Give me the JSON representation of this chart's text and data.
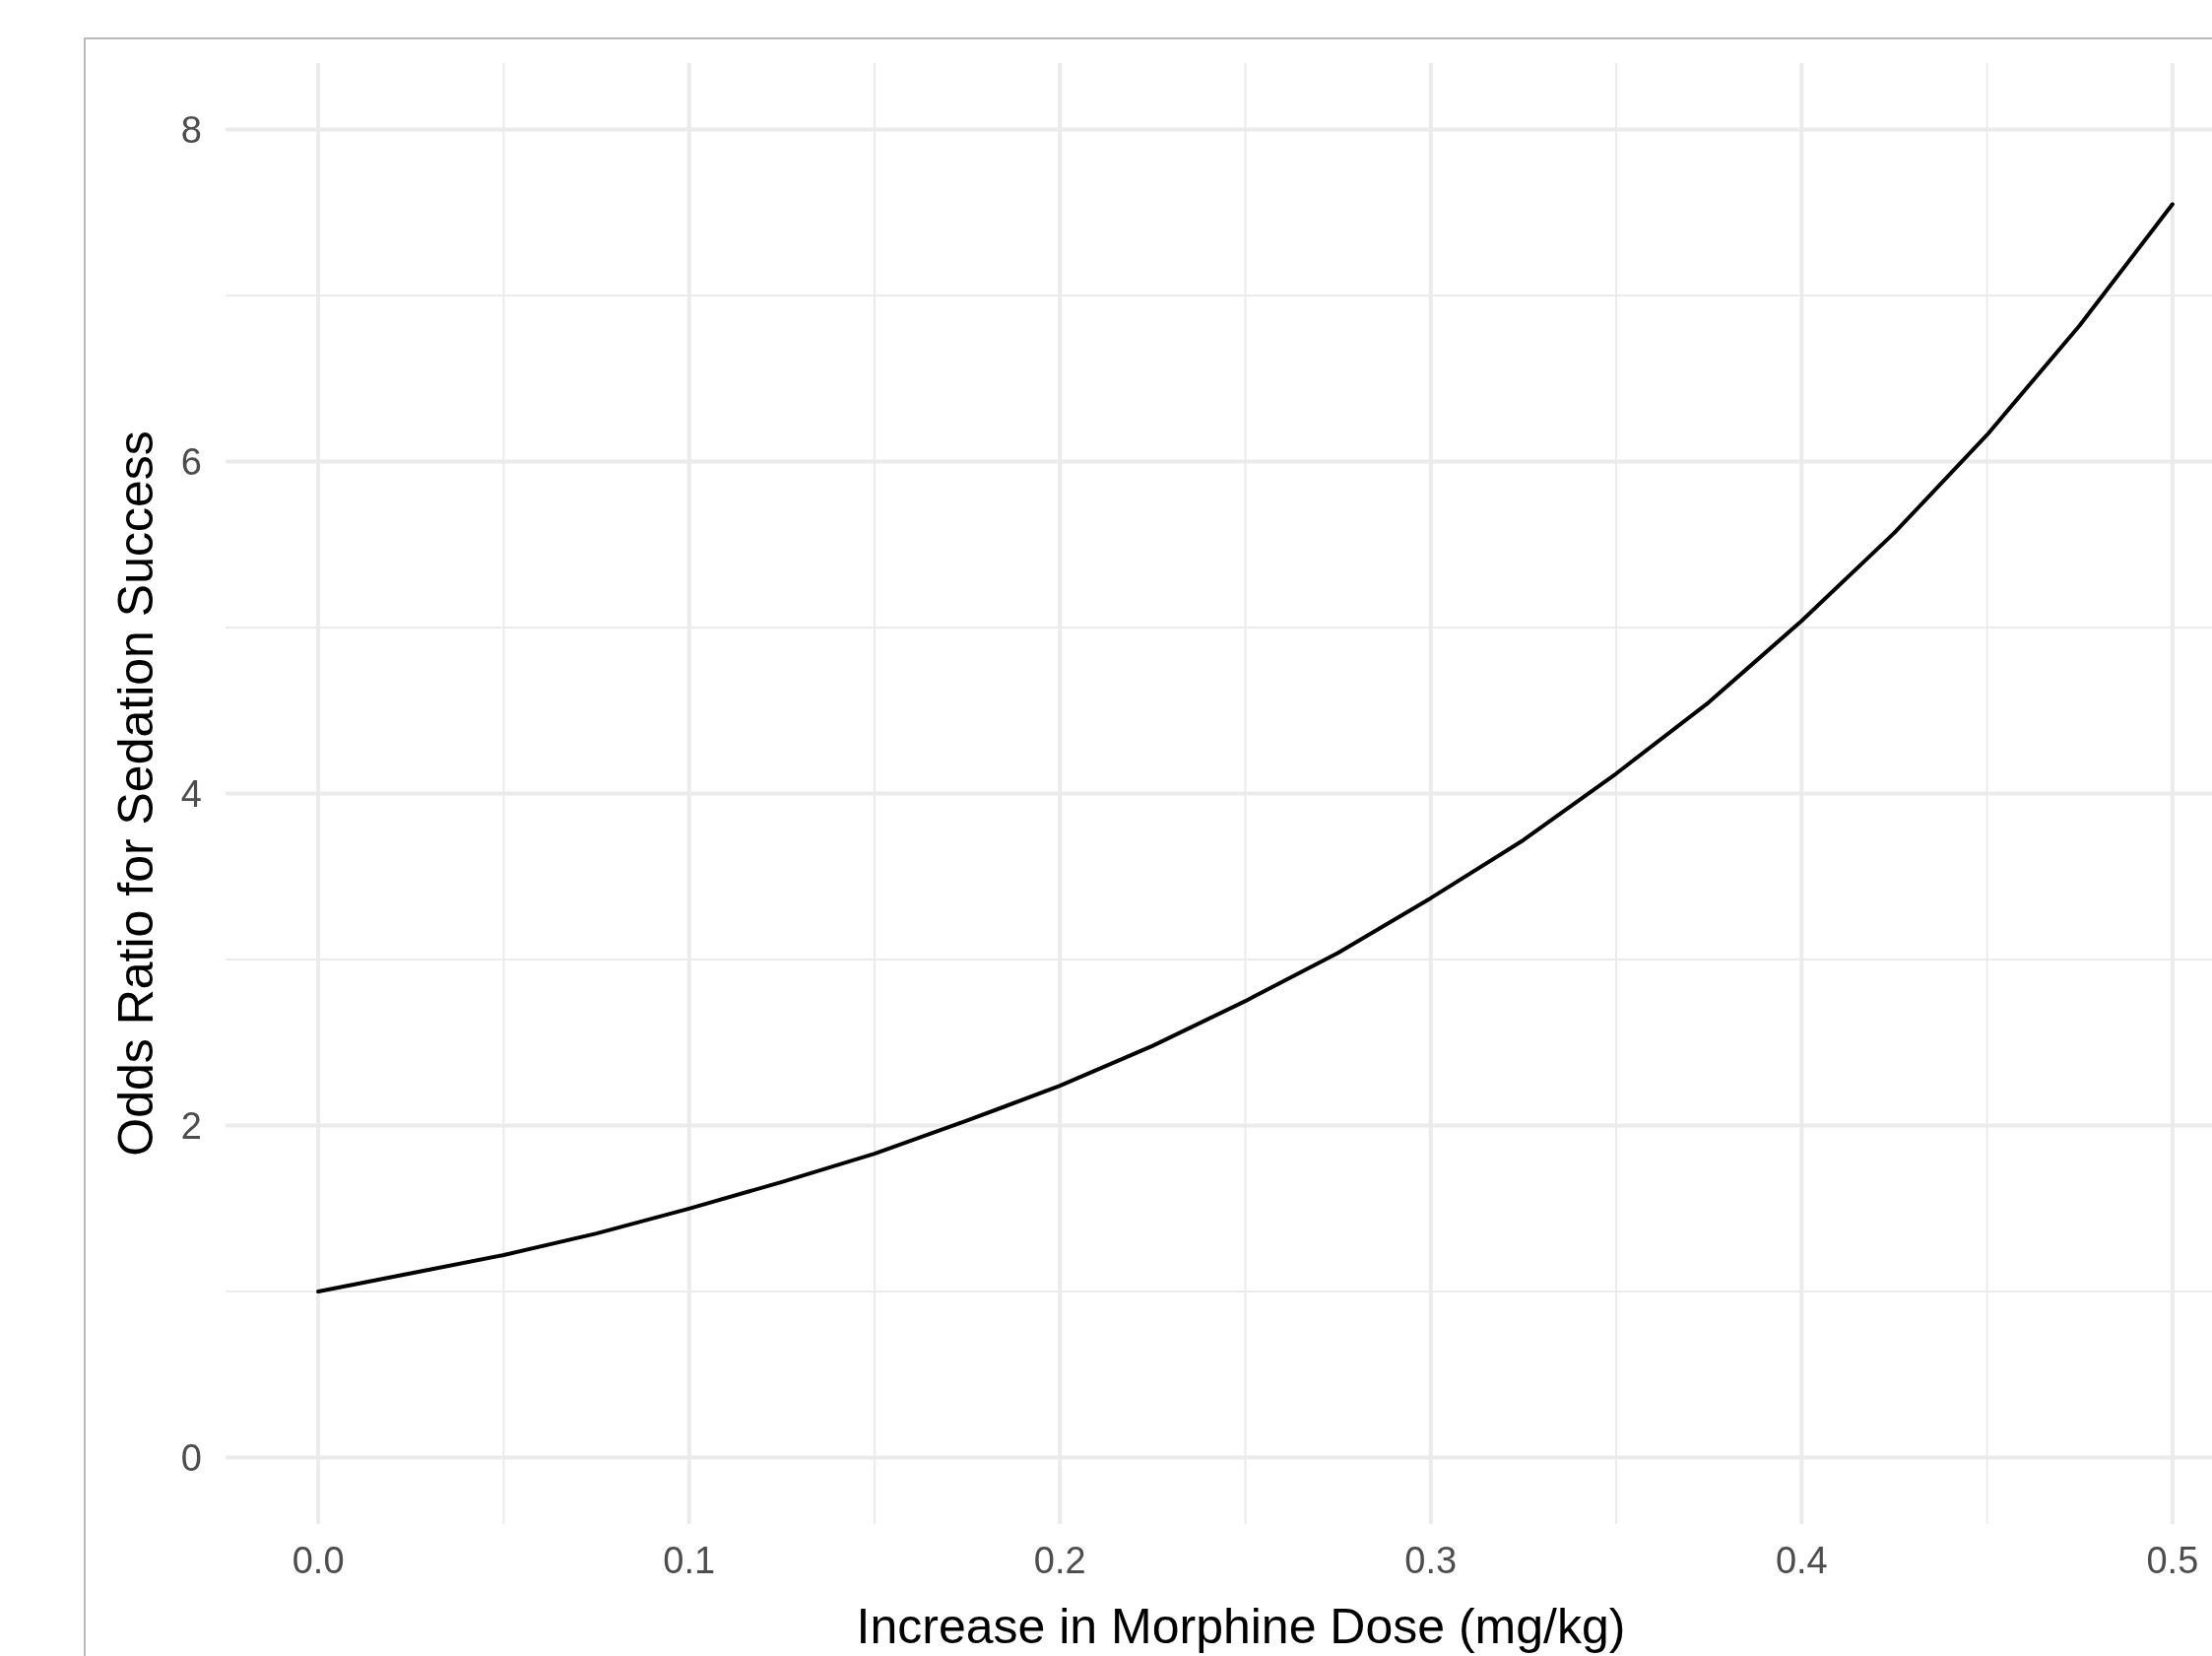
{
  "chart_data": {
    "type": "line",
    "xlabel": "Increase in Morphine Dose (mg/kg)",
    "ylabel": "Odds Ratio for Sedation Success",
    "x": [
      0,
      0.025,
      0.05,
      0.075,
      0.1,
      0.125,
      0.15,
      0.175,
      0.2,
      0.225,
      0.25,
      0.275,
      0.3,
      0.325,
      0.35,
      0.375,
      0.4,
      0.425,
      0.45,
      0.475,
      0.5
    ],
    "series": [
      {
        "color": "#000000",
        "values": [
          1.0,
          1.11,
          1.22,
          1.35,
          1.5,
          1.66,
          1.83,
          2.03,
          2.24,
          2.48,
          2.75,
          3.04,
          3.37,
          3.72,
          4.12,
          4.55,
          5.04,
          5.57,
          6.16,
          6.82,
          7.55
        ]
      }
    ],
    "xlim": [
      -0.025,
      0.525
    ],
    "ylim": [
      -0.4,
      8.4
    ],
    "xticks": [
      {
        "value": 0,
        "label": "0.0"
      },
      {
        "value": 0.05,
        "label": null
      },
      0.1,
      {
        "value": 0.15,
        "label": null
      },
      0.2,
      {
        "value": 0.25,
        "label": null
      },
      0.3,
      {
        "value": 0.35,
        "label": null
      },
      0.4,
      {
        "value": 0.45,
        "label": null
      },
      0.5
    ],
    "yticks": [
      0,
      {
        "value": 1,
        "label": null
      },
      2,
      {
        "value": 3,
        "label": null
      },
      4,
      {
        "value": 5,
        "label": null
      },
      6,
      {
        "value": 7,
        "label": null
      },
      8
    ],
    "grid": true,
    "marker": "none",
    "line_style": "solid"
  }
}
